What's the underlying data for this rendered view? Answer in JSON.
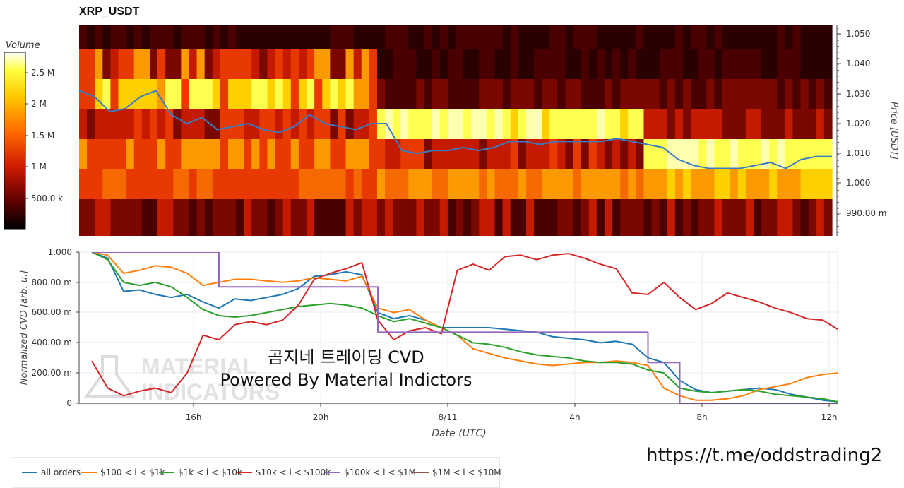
{
  "title": "XRP_USDT",
  "colorbar": {
    "label": "Volume",
    "ticks": [
      "2.5 M",
      "2 M",
      "1.5 M",
      "1 M",
      "500.0 k"
    ]
  },
  "heatmap": {
    "price_ticks": [
      "1.050",
      "1.040",
      "1.030",
      "1.020",
      "1.010",
      "1.000",
      "990.00 m"
    ],
    "price_label": "Price [USDT]"
  },
  "cvd": {
    "ylabel": "Normalized CVD [arb. u.]",
    "yticks": [
      "1.000",
      "800.00 m",
      "600.00 m",
      "400.00 m",
      "200.00 m",
      "0"
    ],
    "xticks": [
      "16h",
      "20h",
      "8/11",
      "4h",
      "8h",
      "12h"
    ],
    "xlabel": "Date (UTC)"
  },
  "overlay_text": {
    "line1": "곰지네 트레이딩 CVD",
    "line2": "Powered By Material Indictors"
  },
  "watermark": {
    "line1": "MATERIAL",
    "line2": "INDICATORS"
  },
  "url": "https://t.me/oddstrading2",
  "legend": [
    {
      "label": "all orders",
      "color": "#1f77b4"
    },
    {
      "label": "$100 < i < $1k",
      "color": "#ff7f0e"
    },
    {
      "label": "$1k < i < $10k",
      "color": "#2ca02c"
    },
    {
      "label": "$10k < i < $100k",
      "color": "#d62728"
    },
    {
      "label": "$100k < i < $1M",
      "color": "#9467bd"
    },
    {
      "label": "$1M < i < $10M",
      "color": "#8c564b"
    }
  ],
  "chart_data": [
    {
      "type": "heatmap",
      "title": "XRP_USDT",
      "ylabel": "Price [USDT]",
      "price_levels": [
        1.05,
        1.04,
        1.03,
        1.02,
        1.01,
        1.0,
        0.99
      ],
      "price_series": {
        "name": "price",
        "color": "#3a7cc4",
        "values": [
          1.031,
          1.029,
          1.024,
          1.025,
          1.029,
          1.031,
          1.023,
          1.02,
          1.022,
          1.018,
          1.019,
          1.02,
          1.018,
          1.017,
          1.019,
          1.023,
          1.02,
          1.019,
          1.018,
          1.02,
          1.02,
          1.011,
          1.01,
          1.011,
          1.011,
          1.012,
          1.011,
          1.012,
          1.014,
          1.014,
          1.013,
          1.014,
          1.014,
          1.014,
          1.014,
          1.015,
          1.014,
          1.013,
          1.012,
          1.008,
          1.006,
          1.005,
          1.005,
          1.005,
          1.006,
          1.007,
          1.005,
          1.008,
          1.009,
          1.009
        ]
      }
    },
    {
      "type": "line",
      "ylabel": "Normalized CVD [arb. u.]",
      "xlabel": "Date (UTC)",
      "ylim": [
        0,
        1
      ],
      "x_ticks": [
        "16h",
        "20h",
        "8/11",
        "4h",
        "8h",
        "12h"
      ],
      "x_hours": [
        12.8,
        13.3,
        13.8,
        14.3,
        14.8,
        15.3,
        15.8,
        16.3,
        16.8,
        17.3,
        17.8,
        18.3,
        18.8,
        19.3,
        19.8,
        20.3,
        20.8,
        21.3,
        21.8,
        22.3,
        22.8,
        23.3,
        23.8,
        24.3,
        24.8,
        25.3,
        25.8,
        26.3,
        26.8,
        27.3,
        27.8,
        28.3,
        28.8,
        29.3,
        29.8,
        30.3,
        30.8,
        31.3,
        31.8,
        32.3,
        32.8,
        33.3,
        33.8,
        34.3,
        34.8,
        35.3,
        35.8,
        36.3
      ],
      "series": [
        {
          "name": "all orders",
          "color": "#1f77b4",
          "values": [
            1.0,
            0.96,
            0.74,
            0.75,
            0.72,
            0.7,
            0.72,
            0.67,
            0.63,
            0.69,
            0.68,
            0.7,
            0.72,
            0.76,
            0.84,
            0.85,
            0.87,
            0.85,
            0.6,
            0.56,
            0.58,
            0.55,
            0.5,
            0.5,
            0.5,
            0.5,
            0.49,
            0.48,
            0.47,
            0.44,
            0.43,
            0.42,
            0.4,
            0.41,
            0.39,
            0.3,
            0.27,
            0.15,
            0.09,
            0.07,
            0.08,
            0.09,
            0.1,
            0.09,
            0.06,
            0.04,
            0.02,
            0.01
          ]
        },
        {
          "name": "$100 < i < $1k",
          "color": "#ff7f0e",
          "values": [
            1.0,
            0.98,
            0.86,
            0.88,
            0.91,
            0.9,
            0.86,
            0.78,
            0.8,
            0.82,
            0.82,
            0.81,
            0.8,
            0.81,
            0.83,
            0.82,
            0.81,
            0.84,
            0.63,
            0.6,
            0.62,
            0.55,
            0.5,
            0.45,
            0.36,
            0.33,
            0.3,
            0.28,
            0.26,
            0.25,
            0.26,
            0.27,
            0.27,
            0.28,
            0.27,
            0.25,
            0.1,
            0.05,
            0.02,
            0.02,
            0.03,
            0.05,
            0.09,
            0.11,
            0.13,
            0.17,
            0.19,
            0.2
          ]
        },
        {
          "name": "$1k < i < $10k",
          "color": "#2ca02c",
          "values": [
            1.0,
            0.95,
            0.8,
            0.78,
            0.8,
            0.77,
            0.7,
            0.62,
            0.58,
            0.57,
            0.58,
            0.6,
            0.62,
            0.64,
            0.65,
            0.66,
            0.65,
            0.63,
            0.58,
            0.54,
            0.56,
            0.53,
            0.5,
            0.45,
            0.4,
            0.39,
            0.37,
            0.34,
            0.32,
            0.31,
            0.3,
            0.28,
            0.27,
            0.27,
            0.26,
            0.22,
            0.2,
            0.1,
            0.08,
            0.07,
            0.08,
            0.09,
            0.08,
            0.06,
            0.05,
            0.04,
            0.03,
            0.01
          ]
        },
        {
          "name": "$10k < i < $100k",
          "color": "#d62728",
          "values": [
            0.28,
            0.1,
            0.05,
            0.08,
            0.1,
            0.07,
            0.2,
            0.45,
            0.42,
            0.52,
            0.54,
            0.52,
            0.55,
            0.65,
            0.82,
            0.86,
            0.89,
            0.93,
            0.55,
            0.42,
            0.48,
            0.5,
            0.46,
            0.88,
            0.92,
            0.88,
            0.97,
            0.98,
            0.95,
            0.98,
            0.99,
            0.96,
            0.92,
            0.89,
            0.73,
            0.72,
            0.8,
            0.7,
            0.62,
            0.66,
            0.73,
            0.7,
            0.67,
            0.63,
            0.6,
            0.56,
            0.55,
            0.49
          ]
        },
        {
          "name": "$100k < i < $1M",
          "color": "#9467bd",
          "values": [
            1.0,
            1.0,
            1.0,
            1.0,
            1.0,
            1.0,
            1.0,
            1.0,
            0.77,
            0.77,
            0.77,
            0.77,
            0.77,
            0.77,
            0.77,
            0.77,
            0.77,
            0.77,
            0.47,
            0.47,
            0.47,
            0.47,
            0.47,
            0.47,
            0.47,
            0.47,
            0.47,
            0.47,
            0.47,
            0.47,
            0.47,
            0.47,
            0.47,
            0.47,
            0.47,
            0.27,
            0.27,
            0.0,
            0.0,
            0.0,
            0.0,
            0.0,
            0.0,
            0.0,
            0.0,
            0.0,
            0.0,
            0.0
          ]
        },
        {
          "name": "$1M < i < $10M",
          "color": "#8c564b",
          "values": [
            0,
            0,
            0,
            0,
            0,
            0,
            0,
            0,
            0,
            0,
            0,
            0,
            0,
            0,
            0,
            0,
            0,
            0,
            0,
            0,
            0,
            0,
            0,
            0,
            0,
            0,
            0,
            0,
            0,
            0,
            0,
            0,
            0,
            0,
            0,
            0,
            0,
            0,
            0,
            0,
            0,
            0,
            0,
            0,
            0,
            0,
            0,
            0
          ]
        }
      ]
    }
  ]
}
